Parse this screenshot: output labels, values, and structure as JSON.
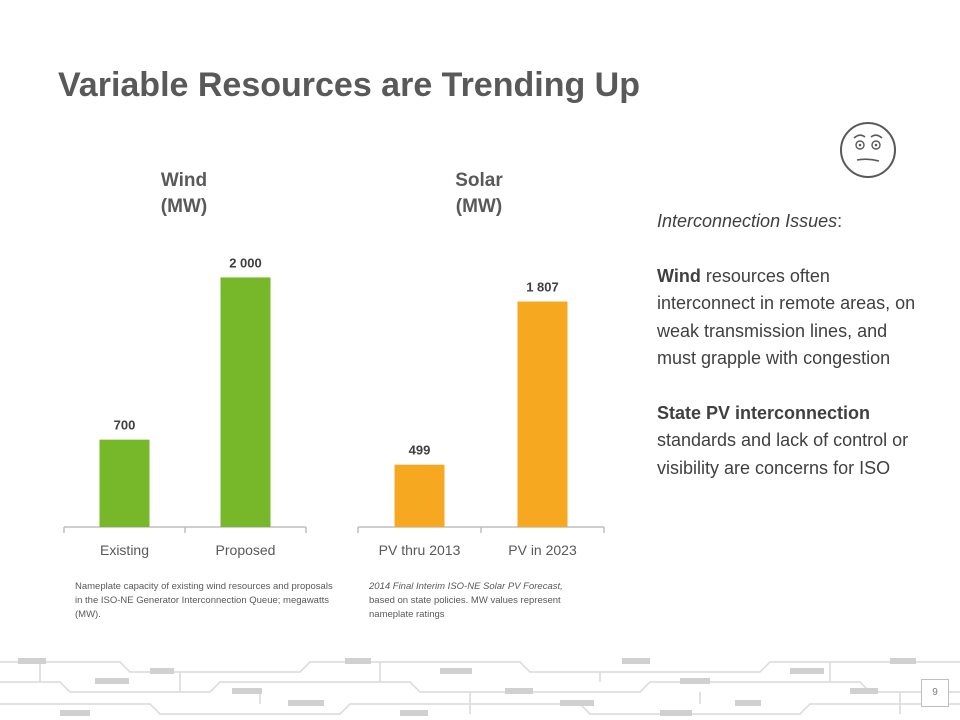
{
  "slide": {
    "title": "Variable Resources are Trending Up",
    "page_number": "9"
  },
  "colors": {
    "wind": "#76b82a",
    "solar": "#f6a821",
    "text": "#595959"
  },
  "icons": [
    "face-icon"
  ],
  "chart_data": [
    {
      "type": "bar",
      "title": "Wind",
      "subtitle": "(MW)",
      "categories": [
        "Existing",
        "Proposed"
      ],
      "values": [
        700,
        2000
      ],
      "value_labels": [
        "700",
        "2 000"
      ],
      "ylim": [
        0,
        2300
      ],
      "grid": false,
      "color": "#76b82a",
      "note": "Nameplate capacity of existing wind resources and proposals in the ISO-NE Generator Interconnection Queue; megawatts (MW)."
    },
    {
      "type": "bar",
      "title": "Solar",
      "subtitle": "(MW)",
      "categories": [
        "PV thru 2013",
        "PV in 2023"
      ],
      "values": [
        499,
        1807
      ],
      "value_labels": [
        "499",
        "1 807"
      ],
      "ylim": [
        0,
        2300
      ],
      "grid": false,
      "color": "#f6a821",
      "note_italic": "2014 Final Interim ISO-NE Solar PV Forecast,",
      "note_rest": " based on state policies. MW values represent nameplate ratings"
    }
  ],
  "side_panel": {
    "heading": "Interconnection Issues",
    "heading_suffix": ":",
    "wind_bold": "Wind",
    "wind_text": " resources often interconnect in remote areas, on weak transmission lines, and must grapple with congestion",
    "state_bold": "State PV interconnection",
    "state_text": " standards and lack of control or visibility are concerns for ISO"
  }
}
